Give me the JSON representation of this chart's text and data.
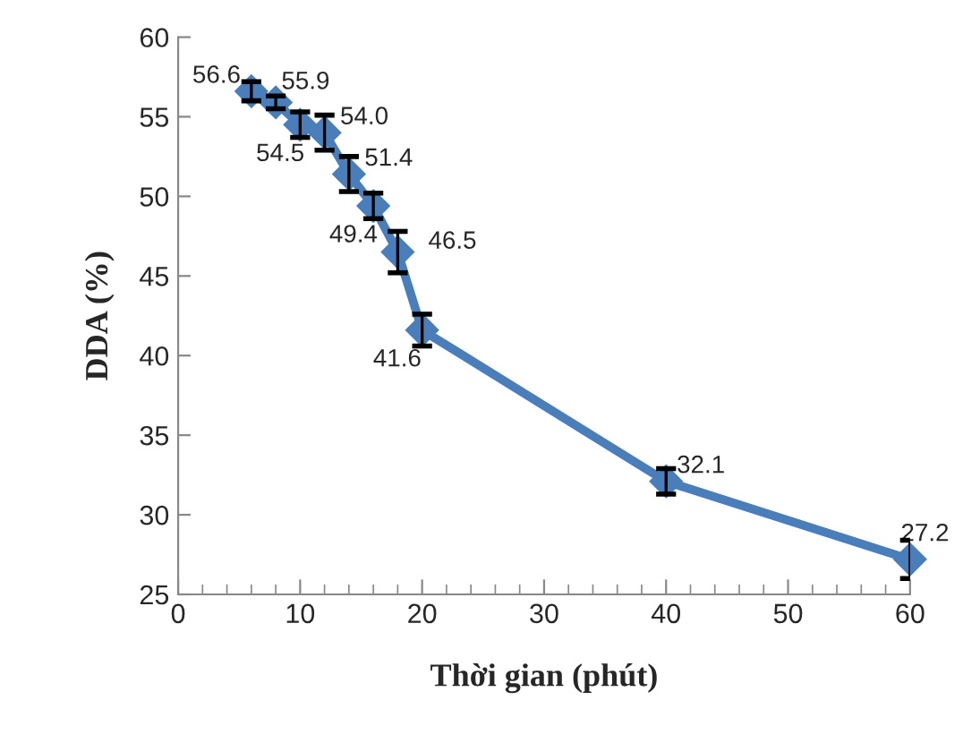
{
  "chart_data": {
    "type": "line",
    "xlabel": "Thời gian (phút)",
    "ylabel": "DDA (%)",
    "x": [
      6,
      8,
      10,
      12,
      14,
      16,
      18,
      20,
      40,
      60
    ],
    "series": [
      {
        "color": "#4a7ebb",
        "values": [
          56.6,
          55.9,
          54.5,
          54.0,
          51.4,
          49.4,
          46.5,
          41.6,
          32.1,
          27.2
        ],
        "errors": [
          0.6,
          0.4,
          0.8,
          1.1,
          1.1,
          0.8,
          1.3,
          1.0,
          0.8,
          1.2
        ]
      }
    ],
    "xlim": [
      0,
      60
    ],
    "xticks": [
      0,
      10,
      20,
      30,
      40,
      50,
      60
    ],
    "ylim": [
      25,
      60
    ],
    "yticks": [
      25,
      30,
      35,
      40,
      45,
      50,
      55,
      60
    ],
    "value_labels": [
      "56.6",
      "55.9",
      "54.5",
      "54.0",
      "51.4",
      "49.4",
      "46.5",
      "41.6",
      "32.1",
      "27.2"
    ],
    "marker": "diamond",
    "line_style": "solid",
    "grid": false,
    "legend": false
  }
}
